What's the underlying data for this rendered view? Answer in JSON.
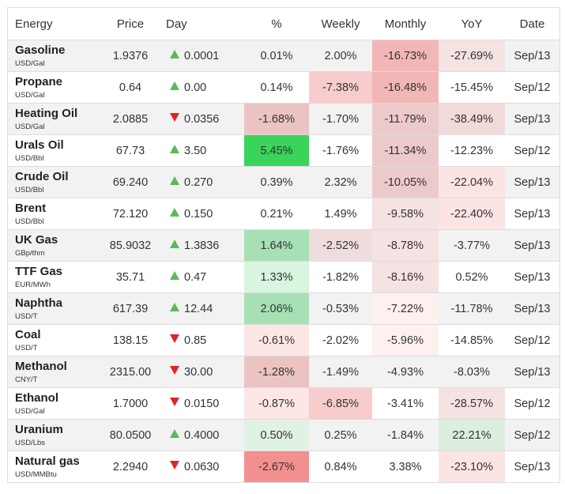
{
  "headers": {
    "energy": "Energy",
    "price": "Price",
    "day": "Day",
    "pct": "%",
    "weekly": "Weekly",
    "monthly": "Monthly",
    "yoy": "YoY",
    "date": "Date"
  },
  "rows": [
    {
      "name": "Gasoline",
      "unit": "USD/Gal",
      "price": "1.9376",
      "dir": "up",
      "day": "0.0001",
      "pct": "0.01%",
      "weekly": "2.00%",
      "monthly": "-16.73%",
      "yoy": "-27.69%",
      "date": "Sep/13"
    },
    {
      "name": "Propane",
      "unit": "USD/Gal",
      "price": "0.64",
      "dir": "up",
      "day": "0.00",
      "pct": "0.14%",
      "weekly": "-7.38%",
      "monthly": "-16.48%",
      "yoy": "-15.45%",
      "date": "Sep/12"
    },
    {
      "name": "Heating Oil",
      "unit": "USD/Gal",
      "price": "2.0885",
      "dir": "down",
      "day": "0.0356",
      "pct": "-1.68%",
      "weekly": "-1.70%",
      "monthly": "-11.79%",
      "yoy": "-38.49%",
      "date": "Sep/13"
    },
    {
      "name": "Urals Oil",
      "unit": "USD/Bbl",
      "price": "67.73",
      "dir": "up",
      "day": "3.50",
      "pct": "5.45%",
      "weekly": "-1.76%",
      "monthly": "-11.34%",
      "yoy": "-12.23%",
      "date": "Sep/12"
    },
    {
      "name": "Crude Oil",
      "unit": "USD/Bbl",
      "price": "69.240",
      "dir": "up",
      "day": "0.270",
      "pct": "0.39%",
      "weekly": "2.32%",
      "monthly": "-10.05%",
      "yoy": "-22.04%",
      "date": "Sep/13"
    },
    {
      "name": "Brent",
      "unit": "USD/Bbl",
      "price": "72.120",
      "dir": "up",
      "day": "0.150",
      "pct": "0.21%",
      "weekly": "1.49%",
      "monthly": "-9.58%",
      "yoy": "-22.40%",
      "date": "Sep/13"
    },
    {
      "name": "UK Gas",
      "unit": "GBp/thm",
      "price": "85.9032",
      "dir": "up",
      "day": "1.3836",
      "pct": "1.64%",
      "weekly": "-2.52%",
      "monthly": "-8.78%",
      "yoy": "-3.77%",
      "date": "Sep/13"
    },
    {
      "name": "TTF Gas",
      "unit": "EUR/MWh",
      "price": "35.71",
      "dir": "up",
      "day": "0.47",
      "pct": "1.33%",
      "weekly": "-1.82%",
      "monthly": "-8.16%",
      "yoy": "0.52%",
      "date": "Sep/13"
    },
    {
      "name": "Naphtha",
      "unit": "USD/T",
      "price": "617.39",
      "dir": "up",
      "day": "12.44",
      "pct": "2.06%",
      "weekly": "-0.53%",
      "monthly": "-7.22%",
      "yoy": "-11.78%",
      "date": "Sep/13"
    },
    {
      "name": "Coal",
      "unit": "USD/T",
      "price": "138.15",
      "dir": "down",
      "day": "0.85",
      "pct": "-0.61%",
      "weekly": "-2.02%",
      "monthly": "-5.96%",
      "yoy": "-14.85%",
      "date": "Sep/12"
    },
    {
      "name": "Methanol",
      "unit": "CNY/T",
      "price": "2315.00",
      "dir": "down",
      "day": "30.00",
      "pct": "-1.28%",
      "weekly": "-1.49%",
      "monthly": "-4.93%",
      "yoy": "-8.03%",
      "date": "Sep/13"
    },
    {
      "name": "Ethanol",
      "unit": "USD/Gal",
      "price": "1.7000",
      "dir": "down",
      "day": "0.0150",
      "pct": "-0.87%",
      "weekly": "-6.85%",
      "monthly": "-3.41%",
      "yoy": "-28.57%",
      "date": "Sep/12"
    },
    {
      "name": "Uranium",
      "unit": "USD/Lbs",
      "price": "80.0500",
      "dir": "up",
      "day": "0.4000",
      "pct": "0.50%",
      "weekly": "0.25%",
      "monthly": "-1.84%",
      "yoy": "22.21%",
      "date": "Sep/12"
    },
    {
      "name": "Natural gas",
      "unit": "USD/MMBtu",
      "price": "2.2940",
      "dir": "down",
      "day": "0.0630",
      "pct": "-2.67%",
      "weekly": "0.84%",
      "monthly": "3.38%",
      "yoy": "-23.10%",
      "date": "Sep/13"
    }
  ],
  "heat_colors": {
    "up_arrow": "#5cb85c",
    "down_arrow": "#e02424",
    "strong_green": "#3bd45b",
    "strong_red": "#f48f8f"
  }
}
